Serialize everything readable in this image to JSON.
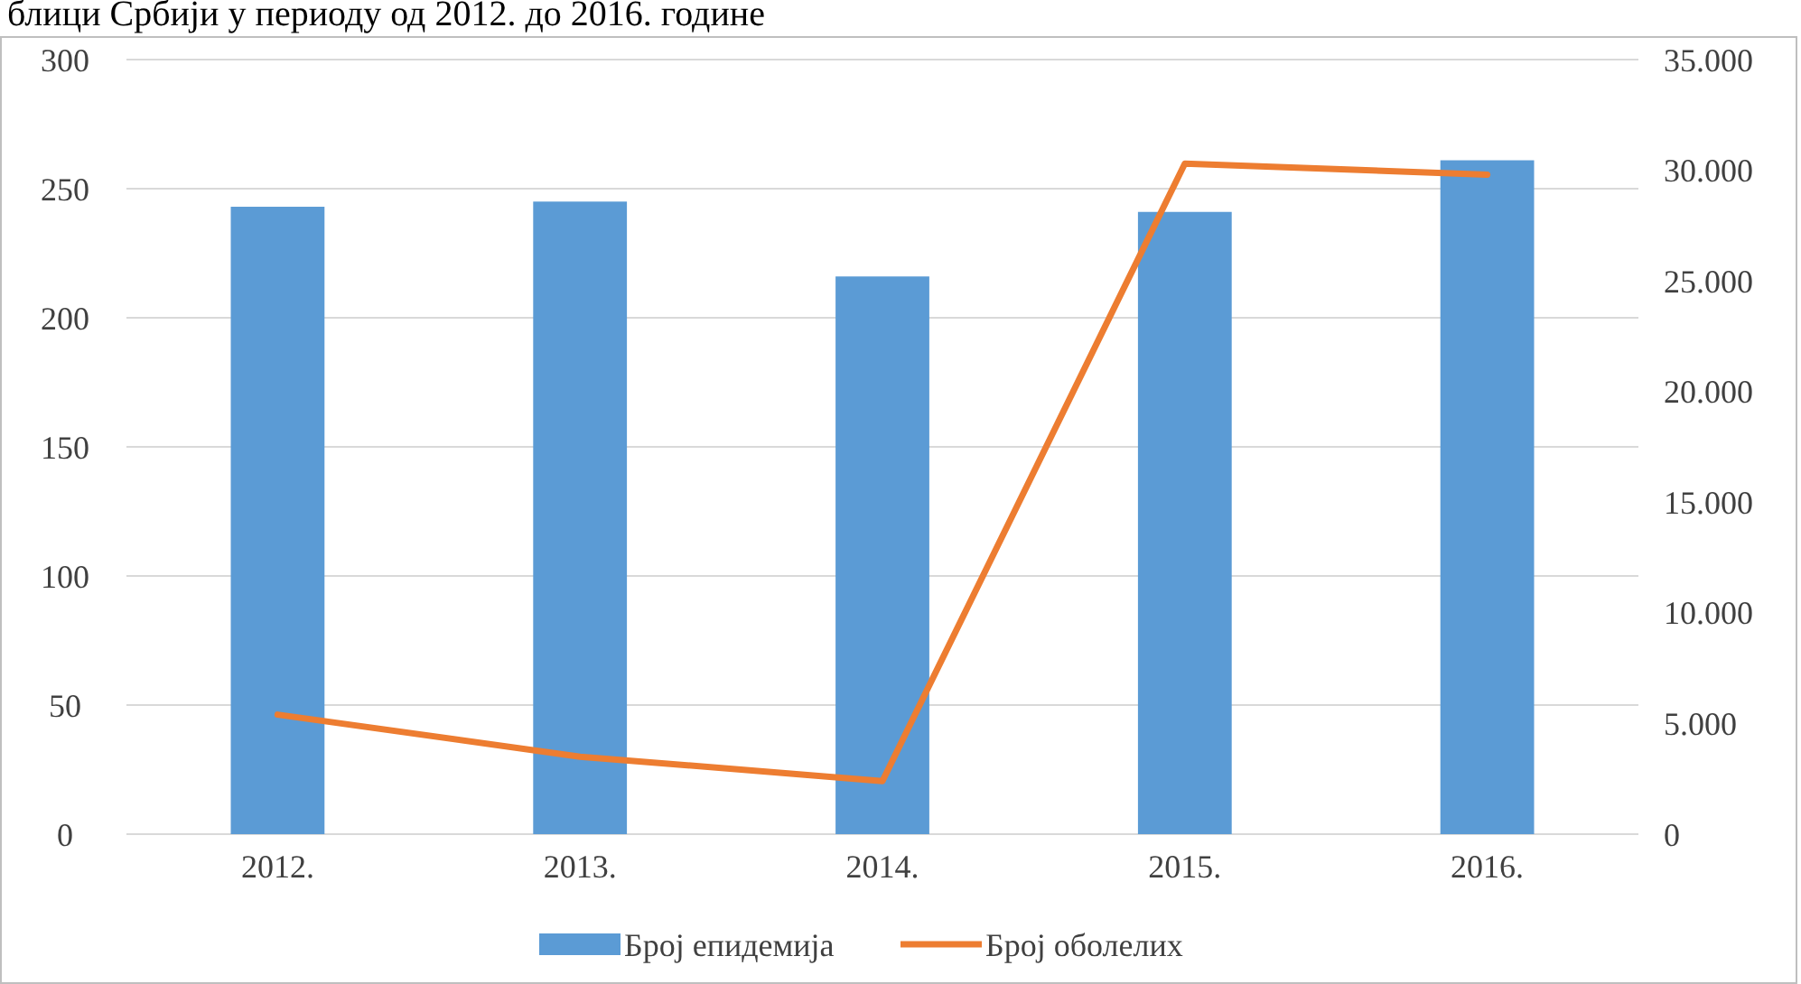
{
  "chart_data": {
    "type": "bar",
    "title": "блици Србији у периоду од 2012. до 2016. године",
    "categories": [
      "2012.",
      "2013.",
      "2014.",
      "2015.",
      "2016."
    ],
    "series": [
      {
        "name": "Број епидемија",
        "color": "#5b9bd5",
        "values": [
          243,
          245,
          216,
          241,
          261
        ]
      },
      {
        "name": "Број оболелих",
        "type": "line",
        "axis": "y2",
        "color": "#ed7d31",
        "values": [
          5400,
          3500,
          2400,
          30300,
          29800
        ]
      }
    ],
    "ylim": [
      0,
      300
    ],
    "yticks": [
      0,
      50,
      100,
      150,
      200,
      250,
      300
    ],
    "y2lim": [
      0,
      35000
    ],
    "y2ticks": [
      0,
      {
        "value": 5000,
        "label": "5.000"
      },
      {
        "value": 10000,
        "label": "10.000"
      },
      {
        "value": 15000,
        "label": "15.000"
      },
      {
        "value": 20000,
        "label": "20.000"
      },
      {
        "value": 25000,
        "label": "25.000"
      },
      {
        "value": 30000,
        "label": "30.000"
      },
      {
        "value": 35000,
        "label": "35.000"
      }
    ],
    "grid": "y",
    "legend": "bottom",
    "marker": "none",
    "line_style": "solid"
  }
}
